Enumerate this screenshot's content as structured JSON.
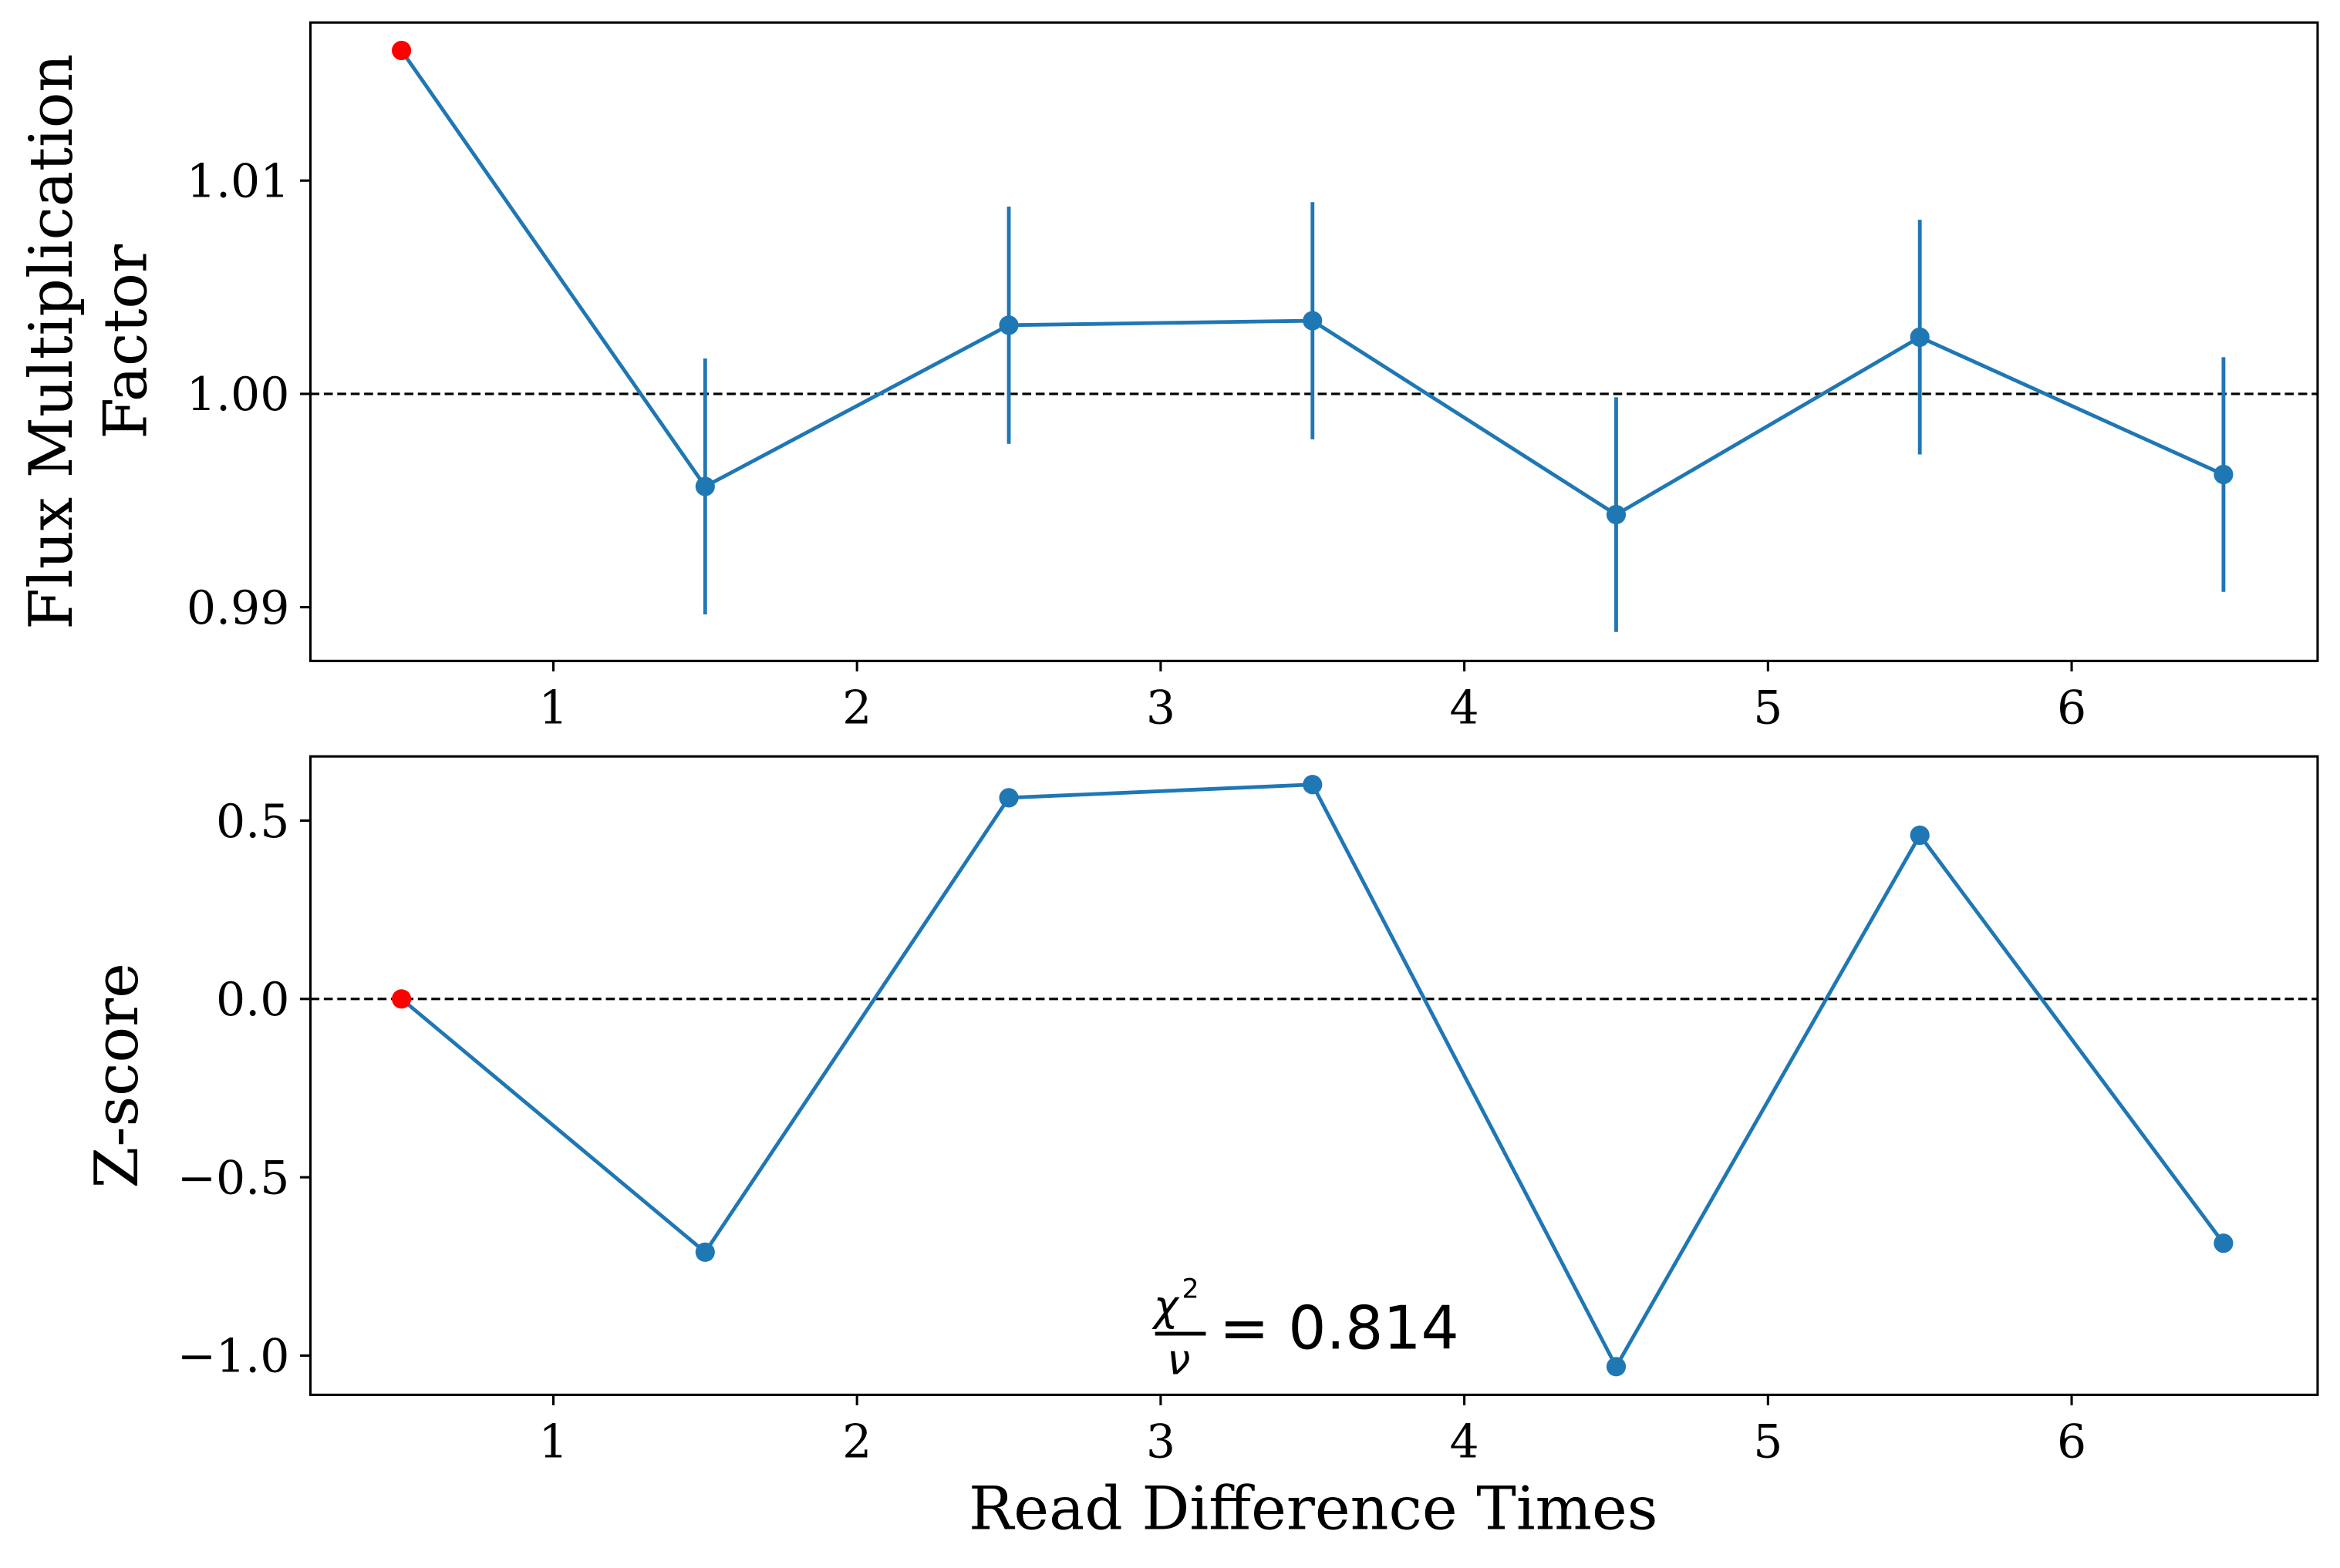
{
  "chart_data": [
    {
      "type": "line",
      "xlabel": "",
      "ylabel_lines": [
        "Flux Multiplication",
        "Factor"
      ],
      "xlim": [
        0.2,
        6.81
      ],
      "ylim": [
        0.98748,
        1.01741
      ],
      "xticks": [
        1,
        2,
        3,
        4,
        5,
        6
      ],
      "xtick_labels": [
        "1",
        "2",
        "3",
        "4",
        "5",
        "6"
      ],
      "yticks": [
        0.99,
        1.0,
        1.01
      ],
      "ytick_labels": [
        "0.99",
        "1.00",
        "1.01"
      ],
      "reference_line": 1.0,
      "x": [
        0.5,
        1.5,
        2.5,
        3.5,
        4.5,
        5.5,
        6.5
      ],
      "y": [
        1.0161,
        0.99566,
        1.00322,
        1.00343,
        0.99434,
        1.00266,
        0.99622
      ],
      "yerr": [
        0,
        0.006,
        0.00556,
        0.00556,
        0.0055,
        0.0055,
        0.0055
      ],
      "highlight_index": 0,
      "series_color": "#1f77b4",
      "highlight_color": "#ff0000"
    },
    {
      "type": "line",
      "xlabel": "Read Difference Times",
      "ylabel": "Z-score",
      "xlim": [
        0.2,
        6.81
      ],
      "ylim": [
        -1.11,
        0.68
      ],
      "xticks": [
        1,
        2,
        3,
        4,
        5,
        6
      ],
      "xtick_labels": [
        "1",
        "2",
        "3",
        "4",
        "5",
        "6"
      ],
      "yticks": [
        -1.0,
        -0.5,
        0.0,
        0.5
      ],
      "ytick_labels": [
        "−1.0",
        "−0.5",
        "0.0",
        "0.5"
      ],
      "reference_line": 0.0,
      "x": [
        0.5,
        1.5,
        2.5,
        3.5,
        4.5,
        5.5,
        6.5
      ],
      "y": [
        0.0,
        -0.71,
        0.564,
        0.601,
        -1.031,
        0.459,
        -0.685
      ],
      "highlight_index": 0,
      "annotation": {
        "numerator": "χ",
        "sup": "2",
        "denominator": "ν",
        "text": "= 0.814"
      },
      "series_color": "#1f77b4",
      "highlight_color": "#ff0000"
    }
  ]
}
